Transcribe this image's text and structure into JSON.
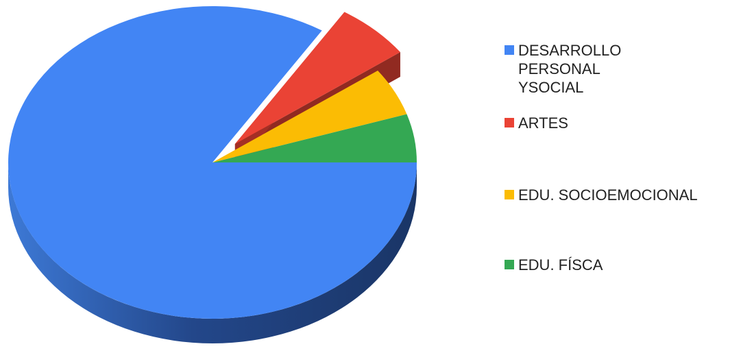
{
  "chart_data": {
    "type": "pie",
    "style": "3d",
    "categories": [
      "DESARROLLO PERSONAL YSOCIAL",
      "ARTES",
      "EDU. SOCIOEMOCIONAL",
      "EDU. FÍSCA"
    ],
    "values": [
      84,
      6,
      5,
      5
    ],
    "colors": [
      "#4285f4",
      "#ea4335",
      "#fbbc04",
      "#34a853"
    ],
    "exploded": "ARTES",
    "legend_position": "right"
  },
  "legend": {
    "items": [
      {
        "label": "DESARROLLO\nPERSONAL\nYSOCIAL",
        "color": "#4285f4"
      },
      {
        "label": "ARTES",
        "color": "#ea4335"
      },
      {
        "label": "EDU. SOCIOEMOCIONAL",
        "color": "#fbbc04"
      },
      {
        "label": "EDU. FÍSCA",
        "color": "#34a853"
      }
    ]
  }
}
